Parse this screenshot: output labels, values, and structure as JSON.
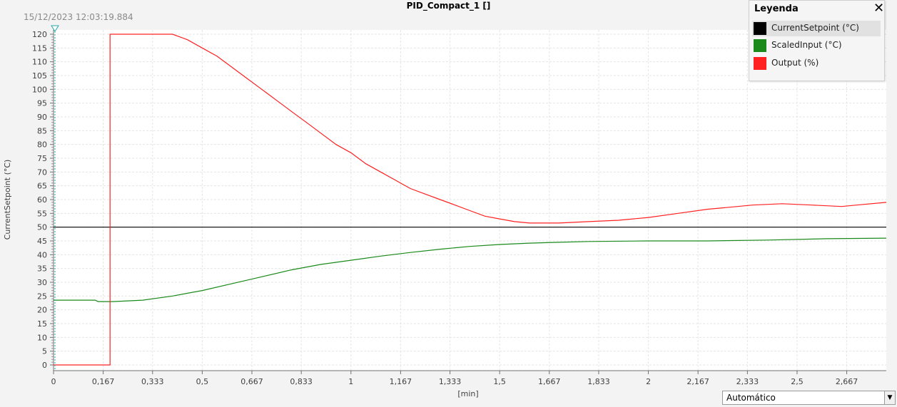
{
  "header": {
    "timestamp": "15/12/2023 12:03:19.884",
    "title": "PID_Compact_1 []"
  },
  "legend": {
    "title": "Leyenda",
    "close_icon": "close-icon",
    "items": [
      {
        "label": "CurrentSetpoint (°C)",
        "color": "#000000"
      },
      {
        "label": "ScaledInput (°C)",
        "color": "#1a8a1a"
      },
      {
        "label": "Output (%)",
        "color": "#ff2020"
      }
    ]
  },
  "mode_select": {
    "value": "Automático",
    "icon": "chevron-down-icon"
  },
  "chart_data": {
    "type": "line",
    "title": "PID_Compact_1 []",
    "xlabel": "[min]",
    "ylabel": "CurrentSetpoint (°C)",
    "xlim": [
      0,
      2.8
    ],
    "ylim": [
      0,
      120
    ],
    "x_ticks": [
      0,
      0.167,
      0.333,
      0.5,
      0.667,
      0.833,
      1,
      1.167,
      1.333,
      1.5,
      1.667,
      1.833,
      2,
      2.167,
      2.333,
      2.5,
      2.667
    ],
    "x_tick_labels": [
      "0",
      "0,167",
      "0,333",
      "0,5",
      "0,667",
      "0,833",
      "1",
      "1,167",
      "1,333",
      "1,5",
      "1,667",
      "1,833",
      "2",
      "2,167",
      "2,333",
      "2,5",
      "2,667"
    ],
    "y_ticks": [
      0,
      5,
      10,
      15,
      20,
      25,
      30,
      35,
      40,
      45,
      50,
      55,
      60,
      65,
      70,
      75,
      80,
      85,
      90,
      95,
      100,
      105,
      110,
      115,
      120
    ],
    "grid": true,
    "legend_position": "top-right",
    "series": [
      {
        "name": "CurrentSetpoint (°C)",
        "color": "#000000",
        "points": [
          [
            0,
            50
          ],
          [
            2.8,
            50
          ]
        ]
      },
      {
        "name": "ScaledInput (°C)",
        "color": "#1a8a1a",
        "points": [
          [
            0,
            23.5
          ],
          [
            0.14,
            23.5
          ],
          [
            0.15,
            23
          ],
          [
            0.2,
            23
          ],
          [
            0.3,
            23.5
          ],
          [
            0.4,
            25
          ],
          [
            0.5,
            27
          ],
          [
            0.6,
            29.5
          ],
          [
            0.7,
            32
          ],
          [
            0.8,
            34.5
          ],
          [
            0.9,
            36.5
          ],
          [
            1.0,
            38
          ],
          [
            1.1,
            39.5
          ],
          [
            1.2,
            40.8
          ],
          [
            1.3,
            42
          ],
          [
            1.4,
            43
          ],
          [
            1.5,
            43.7
          ],
          [
            1.6,
            44.2
          ],
          [
            1.7,
            44.5
          ],
          [
            1.8,
            44.8
          ],
          [
            2.0,
            45
          ],
          [
            2.2,
            45
          ],
          [
            2.4,
            45.3
          ],
          [
            2.6,
            45.8
          ],
          [
            2.8,
            46
          ]
        ]
      },
      {
        "name": "Output (%)",
        "color": "#ff2020",
        "points": [
          [
            0,
            0
          ],
          [
            0.19,
            0
          ],
          [
            0.19,
            120
          ],
          [
            0.4,
            120
          ],
          [
            0.45,
            118
          ],
          [
            0.5,
            115
          ],
          [
            0.55,
            112
          ],
          [
            0.6,
            108
          ],
          [
            0.65,
            104
          ],
          [
            0.7,
            100
          ],
          [
            0.75,
            96
          ],
          [
            0.8,
            92
          ],
          [
            0.85,
            88
          ],
          [
            0.9,
            84
          ],
          [
            0.95,
            80
          ],
          [
            1.0,
            77
          ],
          [
            1.05,
            73
          ],
          [
            1.1,
            70
          ],
          [
            1.15,
            67
          ],
          [
            1.2,
            64
          ],
          [
            1.25,
            62
          ],
          [
            1.3,
            60
          ],
          [
            1.35,
            58
          ],
          [
            1.4,
            56
          ],
          [
            1.45,
            54
          ],
          [
            1.5,
            53
          ],
          [
            1.55,
            52
          ],
          [
            1.6,
            51.5
          ],
          [
            1.7,
            51.5
          ],
          [
            1.8,
            52
          ],
          [
            1.9,
            52.5
          ],
          [
            2.0,
            53.5
          ],
          [
            2.1,
            55
          ],
          [
            2.2,
            56.5
          ],
          [
            2.3,
            57.5
          ],
          [
            2.35,
            58
          ],
          [
            2.45,
            58.5
          ],
          [
            2.55,
            58
          ],
          [
            2.65,
            57.5
          ],
          [
            2.7,
            58
          ],
          [
            2.8,
            59
          ]
        ]
      }
    ]
  }
}
